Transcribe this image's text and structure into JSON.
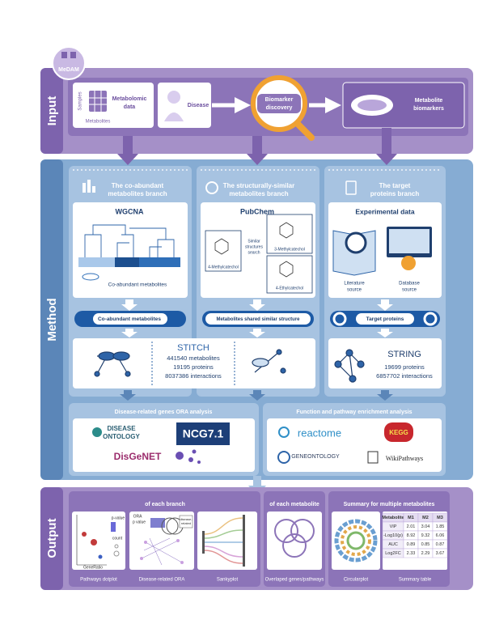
{
  "logo": "MeDAM",
  "input": {
    "label": "Input",
    "samples": "Samples",
    "metabolites": "Metabolites",
    "metabolomic_data": [
      "Metabolomic",
      "data"
    ],
    "disease": "Disease",
    "biomarker_discovery": [
      "Biomarker",
      "discovery"
    ],
    "metabolite_biomarkers": [
      "Metabolite",
      "biomarkers"
    ]
  },
  "method": {
    "label": "Method",
    "branches": [
      {
        "title": [
          "The co-abundant",
          "metabolites branch"
        ],
        "tool": "WGCNA",
        "note": "Co-abundant metabolites",
        "result": "Co-abundant metabolites"
      },
      {
        "title": [
          "The structurally-similar",
          "metabolites branch"
        ],
        "tool": "PubChem",
        "query": "4-Methylcatechol",
        "search": [
          "Similar",
          "structures",
          "search"
        ],
        "hits": [
          "3-Methylcatechol",
          "4-Ethylcatechol"
        ],
        "result": "Metabolites shared similar structure"
      },
      {
        "title": [
          "The target",
          "proteins branch"
        ],
        "tool": "Experimental data",
        "sources": [
          [
            "Literature",
            "source"
          ],
          [
            "Database",
            "source"
          ]
        ],
        "result": "Target proteins"
      }
    ],
    "stitch": {
      "name": "STITCH",
      "lines": [
        "441540 metabolites",
        "19195 proteins",
        "8037386 interactions"
      ]
    },
    "string": {
      "name": "STRING",
      "lines": [
        "19699 proteins",
        "6857702 interactions"
      ]
    },
    "ora": {
      "title": "Disease-related genes ORA analysis",
      "dbs": [
        [
          "DISEASE",
          "ONTOLOGY"
        ],
        "NCG7.1",
        "DisGeNET"
      ]
    },
    "enrichment": {
      "title": "Function and pathway enrichment analysis",
      "dbs": [
        "reactome",
        "KEGG",
        "GENEONTOLOGY",
        "WikiPathways"
      ]
    }
  },
  "output": {
    "label": "Output",
    "groups": [
      "of each branch",
      "of each metabolite",
      "Summary for multiple metabolites"
    ],
    "dotplot": {
      "y": "p-value",
      "size": "count",
      "x": "GeneRatio"
    },
    "ora_plot": {
      "title": "ORA",
      "y": "p value",
      "legend": [
        "disease-",
        "related"
      ]
    },
    "captions": [
      "Pathways dotplot",
      "Disease-related ORA",
      "Sankyplot",
      "Overlaped genes/pathways",
      "Circularplot",
      "Summary table"
    ],
    "table": {
      "header": [
        "Metabolite",
        "M1",
        "M2",
        "M3"
      ],
      "rows": [
        [
          "VIP",
          "2.01",
          "3.04",
          "1.85"
        ],
        [
          "-Log10(p)",
          "8.92",
          "9.32",
          "6.06"
        ],
        [
          "AUC",
          "0.89",
          "0.85",
          "0.87"
        ],
        [
          "Log2FC",
          "2.33",
          "2.29",
          "3.67"
        ]
      ]
    }
  }
}
